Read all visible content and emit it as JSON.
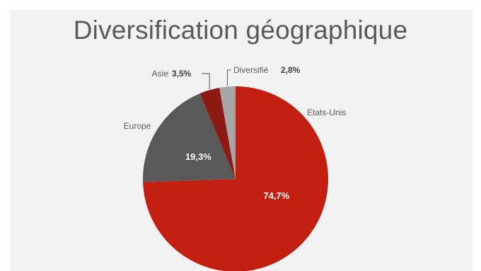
{
  "chart_data": {
    "type": "pie",
    "title": "Diversification géographique",
    "categories": [
      "Etats-Unis",
      "Europe",
      "Asie",
      "Diversifié"
    ],
    "values": [
      74.7,
      19.3,
      3.5,
      2.8
    ],
    "value_labels": [
      "74,7%",
      "19,3%",
      "3,5%",
      "2,8%"
    ],
    "colors": [
      "#c21f10",
      "#595959",
      "#8b1a12",
      "#a6a6a6"
    ],
    "legend": "none"
  }
}
